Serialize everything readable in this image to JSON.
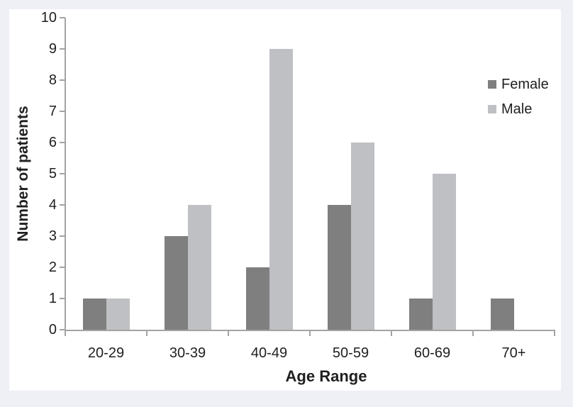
{
  "window": {
    "background_color": "#eef0f6",
    "panel_color": "#ffffff"
  },
  "chart_data": {
    "type": "bar",
    "title": "",
    "categories": [
      "20-29",
      "30-39",
      "40-49",
      "50-59",
      "60-69",
      "70+"
    ],
    "series": [
      {
        "name": "Female",
        "color": "#7f7f7f",
        "values": [
          1,
          3,
          2,
          4,
          1,
          1
        ]
      },
      {
        "name": "Male",
        "color": "#bfc0c3",
        "values": [
          1,
          4,
          9,
          6,
          5,
          0
        ]
      }
    ],
    "xlabel": "Age Range",
    "ylabel": "Number of patients",
    "ylim": [
      0,
      10
    ],
    "yticks": [
      0,
      1,
      2,
      3,
      4,
      5,
      6,
      7,
      8,
      9,
      10
    ],
    "grid": false,
    "legend_position": "right",
    "axis_color": "#a3a3a3",
    "text_color": "#1f1f1f"
  }
}
